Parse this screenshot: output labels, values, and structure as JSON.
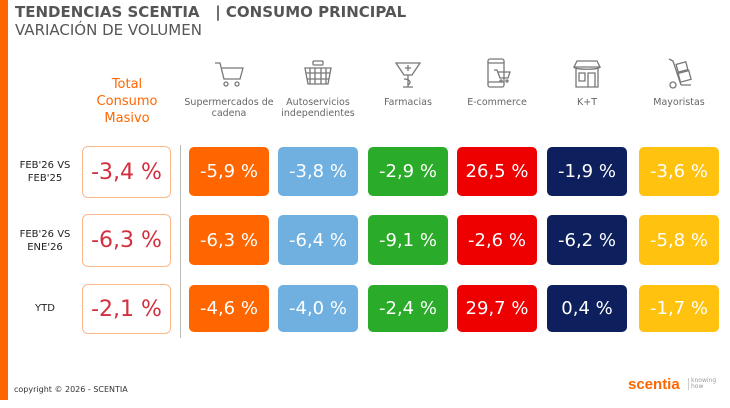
{
  "header": {
    "title": "TENDENCIAS SCENTIA   | CONSUMO PRINCIPAL",
    "subtitle": "VARIACIÓN DE VOLUMEN"
  },
  "total_header": [
    "Total",
    "Consumo",
    "Masivo"
  ],
  "columns": [
    {
      "label": "Supermercados de cadena",
      "icon": "shopping-cart-icon",
      "color": "#ff6600"
    },
    {
      "label": "Autoservicios independientes",
      "icon": "basket-icon",
      "color": "#6fb0e0"
    },
    {
      "label": "Farmacias",
      "icon": "pharmacy-icon",
      "color": "#2aab2a"
    },
    {
      "label": "E-commerce",
      "icon": "phone-cart-icon",
      "color": "#ee0000"
    },
    {
      "label": "K+T",
      "icon": "store-icon",
      "color": "#0d1f5c"
    },
    {
      "label": "Mayoristas",
      "icon": "hand-truck-icon",
      "color": "#ffc20e"
    }
  ],
  "rows": [
    {
      "label": "FEB'26 VS FEB'25",
      "total": "-3,4 %",
      "values": [
        "-5,9 %",
        "-3,8 %",
        "-2,9 %",
        "26,5 %",
        "-1,9 %",
        "-3,6 %"
      ]
    },
    {
      "label": "FEB'26 VS ENE'26",
      "total": "-6,3 %",
      "values": [
        "-6,3 %",
        "-6,4 %",
        "-9,1 %",
        "-2,6 %",
        "-6,2 %",
        "-5,8 %"
      ]
    },
    {
      "label": "YTD",
      "total": "-2,1 %",
      "values": [
        "-4,6 %",
        "-4,0 %",
        "-2,4 %",
        "29,7 %",
        "0,4 %",
        "-1,7 %"
      ]
    }
  ],
  "footer": {
    "copyright": "copyright © 2026 - SCENTIA",
    "logo": "scentia",
    "logo_tagline": "knowing how"
  }
}
